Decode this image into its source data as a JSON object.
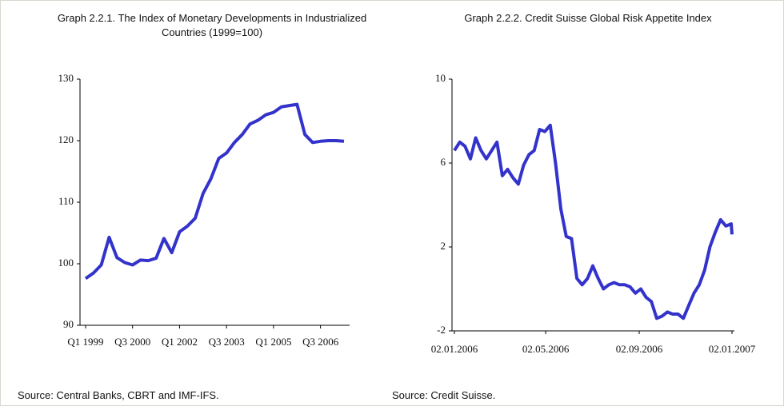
{
  "chart_data": [
    {
      "type": "line",
      "title": "Graph 2.2.1. The Index of Monetary Developments in Industrialized Countries  (1999=100)",
      "source": "Source: Central Banks, CBRT and IMF-IFS.",
      "categories": [
        "Q1 1999",
        null,
        null,
        null,
        null,
        null,
        "Q3 2000",
        null,
        null,
        null,
        null,
        null,
        "Q1 2002",
        null,
        null,
        null,
        null,
        null,
        "Q3 2003",
        null,
        null,
        null,
        null,
        null,
        "Q1 2005",
        null,
        null,
        null,
        null,
        null,
        "Q3 2006",
        null,
        null,
        null
      ],
      "values": [
        97.6,
        98.5,
        99.8,
        104.3,
        101,
        100.2,
        99.8,
        100.6,
        100.5,
        100.9,
        104.1,
        101.8,
        105.2,
        106.1,
        107.4,
        111.4,
        113.8,
        117.1,
        118,
        119.7,
        121,
        122.7,
        123.3,
        124.2,
        124.6,
        125.5,
        125.7,
        125.9,
        121,
        119.7,
        119.9,
        120,
        120,
        119.9
      ],
      "color": "#3333cc",
      "ylim": [
        90,
        130
      ],
      "yticks": [
        90,
        100,
        110,
        120,
        130
      ]
    },
    {
      "type": "line",
      "title": "Graph 2.2.2. Credit Suisse Global Risk Appetite Index",
      "source": "Source: Credit Suisse.",
      "x": [
        "02.01.2006",
        "09.01.2006",
        "16.01.2006",
        "23.01.2006",
        "30.01.2006",
        "06.02.2006",
        "13.02.2006",
        "20.02.2006",
        "27.02.2006",
        "06.03.2006",
        "13.03.2006",
        "20.03.2006",
        "27.03.2006",
        "03.04.2006",
        "10.04.2006",
        "17.04.2006",
        "24.04.2006",
        "01.05.2006",
        "08.05.2006",
        "15.05.2006",
        "22.05.2006",
        "29.05.2006",
        "05.06.2006",
        "12.06.2006",
        "19.06.2006",
        "26.06.2006",
        "03.07.2006",
        "10.07.2006",
        "17.07.2006",
        "24.07.2006",
        "31.07.2006",
        "07.08.2006",
        "14.08.2006",
        "21.08.2006",
        "28.08.2006",
        "04.09.2006",
        "11.09.2006",
        "18.09.2006",
        "25.09.2006",
        "02.10.2006",
        "09.10.2006",
        "16.10.2006",
        "23.10.2006",
        "30.10.2006",
        "06.11.2006",
        "13.11.2006",
        "20.11.2006",
        "27.11.2006",
        "04.12.2006",
        "11.12.2006",
        "18.12.2006",
        "25.12.2006",
        "01.01.2007",
        "02.01.2007"
      ],
      "values": [
        6.6,
        7.0,
        6.8,
        6.2,
        7.2,
        6.6,
        6.2,
        6.6,
        7.0,
        5.4,
        5.7,
        5.3,
        5.0,
        5.9,
        6.4,
        6.6,
        7.6,
        7.5,
        7.8,
        6.0,
        3.8,
        2.5,
        2.4,
        0.5,
        0.2,
        0.5,
        1.1,
        0.5,
        0.0,
        0.2,
        0.3,
        0.2,
        0.2,
        0.1,
        -0.2,
        0.0,
        -0.4,
        -0.6,
        -1.4,
        -1.3,
        -1.1,
        -1.2,
        -1.2,
        -1.4,
        -0.8,
        -0.2,
        0.2,
        0.9,
        2.0,
        2.7,
        3.3,
        3.0,
        3.1,
        2.6
      ],
      "color": "#3333cc",
      "xlim": [
        "02.01.2006",
        "02.01.2007"
      ],
      "xticks": [
        "02.01.2006",
        "02.05.2006",
        "02.09.2006",
        "02.01.2007"
      ],
      "ylim": [
        -2,
        10
      ],
      "yticks": [
        -2,
        2,
        6,
        10
      ]
    }
  ]
}
